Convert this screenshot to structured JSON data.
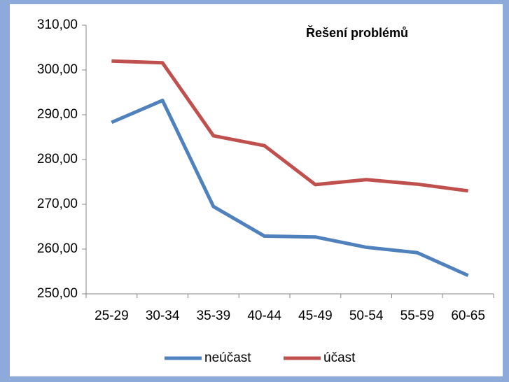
{
  "chart_data": {
    "type": "line",
    "title": "Řešení problémů",
    "categories": [
      "25-29",
      "30-34",
      "35-39",
      "40-44",
      "45-49",
      "50-54",
      "55-59",
      "60-65"
    ],
    "series": [
      {
        "name": "neúčast",
        "color": "#4f81bd",
        "values": [
          288.3,
          293.2,
          269.5,
          262.9,
          262.7,
          260.4,
          259.2,
          254.1
        ]
      },
      {
        "name": "účast",
        "color": "#c0504d",
        "values": [
          302.0,
          301.6,
          285.3,
          283.1,
          274.4,
          275.5,
          274.5,
          273.0
        ]
      }
    ],
    "ylim": [
      250,
      310
    ],
    "yticks": [
      {
        "value": 250,
        "label": "250,00"
      },
      {
        "value": 260,
        "label": "260,00"
      },
      {
        "value": 270,
        "label": "270,00"
      },
      {
        "value": 280,
        "label": "280,00"
      },
      {
        "value": 290,
        "label": "290,00"
      },
      {
        "value": 300,
        "label": "300,00"
      },
      {
        "value": 310,
        "label": "310,00"
      }
    ],
    "legend": "bottom"
  }
}
